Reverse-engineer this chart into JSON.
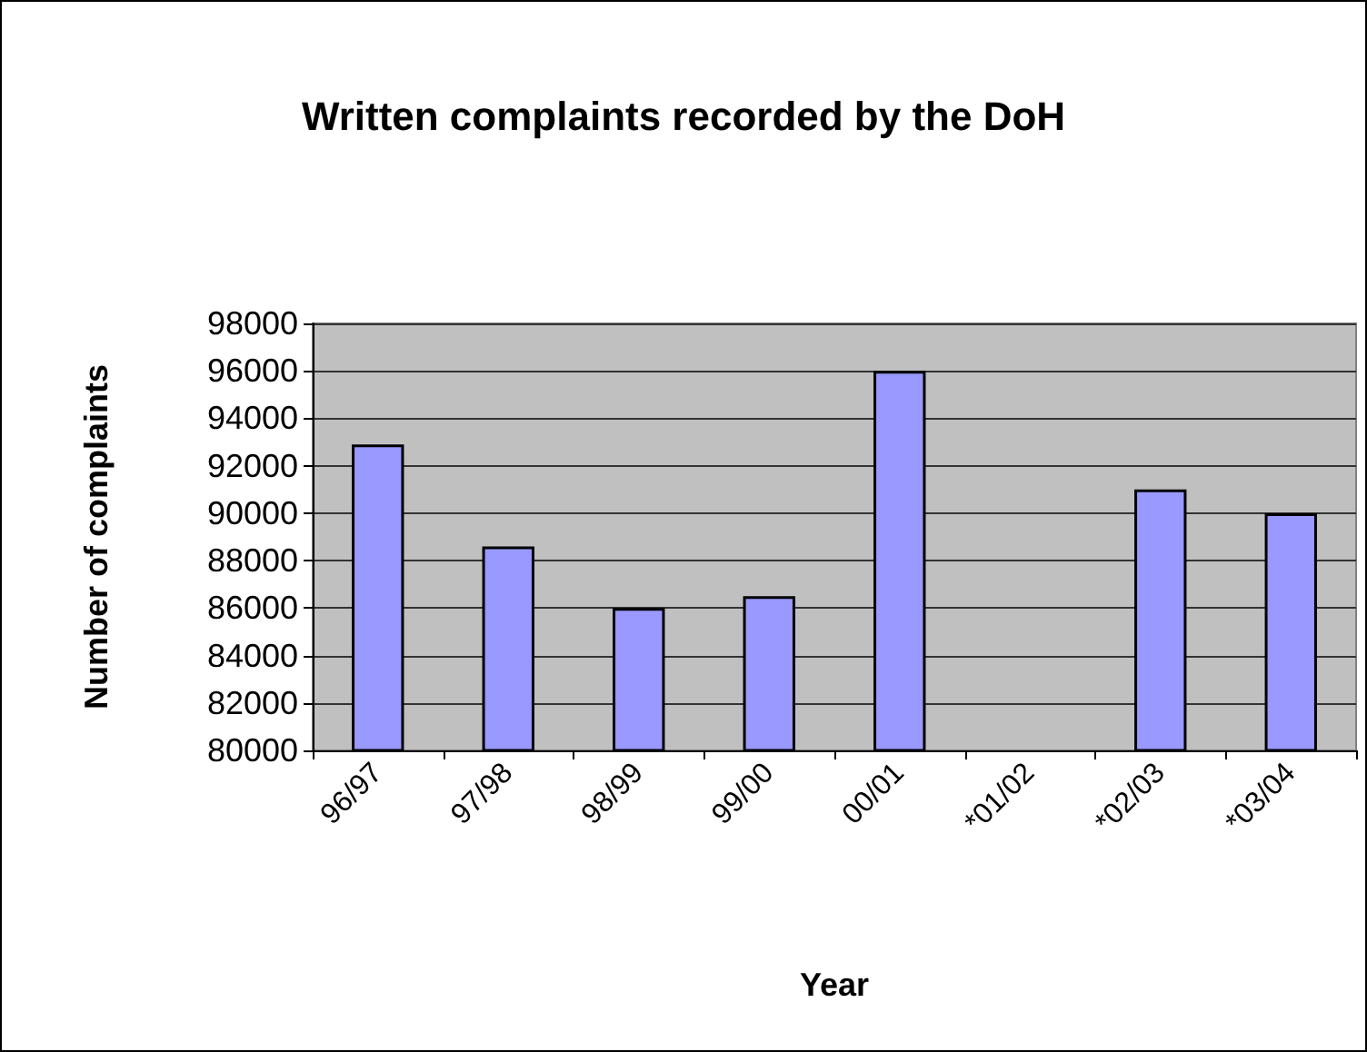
{
  "chart_data": {
    "type": "bar",
    "title": "Written complaints recorded by the DoH",
    "xlabel": "Year",
    "ylabel": "Number of complaints",
    "categories": [
      "96/97",
      "97/98",
      "98/99",
      "99/00",
      "00/01",
      "*01/02",
      "*02/03",
      "*03/04"
    ],
    "values": [
      92900,
      88600,
      86000,
      86500,
      96000,
      null,
      91000,
      90000
    ],
    "color": "#9999ff",
    "ylim": [
      80000,
      98000
    ],
    "yticks": [
      80000,
      82000,
      84000,
      86000,
      88000,
      90000,
      92000,
      94000,
      96000,
      98000
    ],
    "grid": "y"
  }
}
